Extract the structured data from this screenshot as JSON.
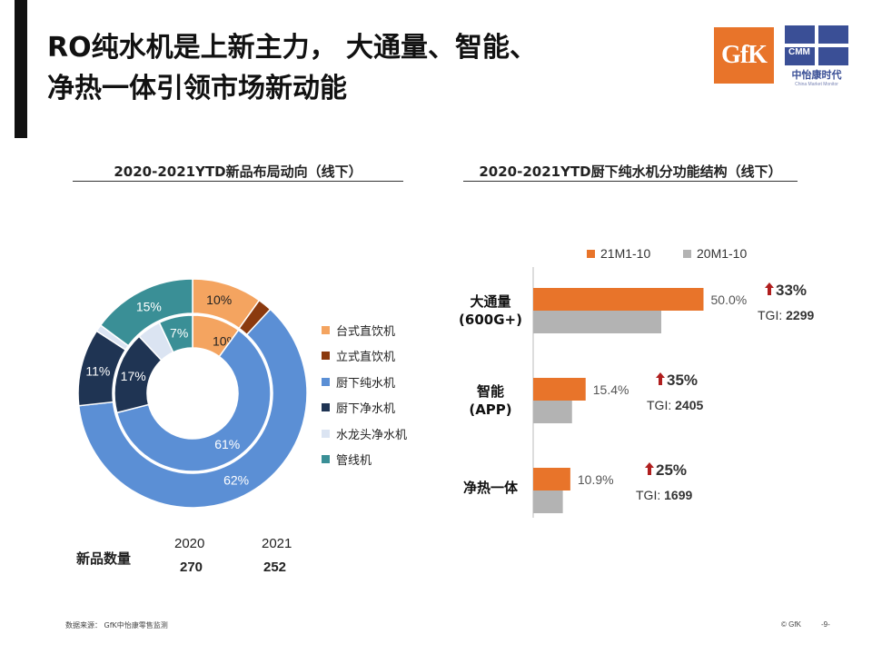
{
  "title_lines": [
    "RO纯水机是上新主力， 大通量、智能、",
    "净热一体引领市场新动能"
  ],
  "logos": {
    "gfk": "GfK",
    "cmm_abbr": "CMM",
    "cmm_cn": "中怡康时代",
    "cmm_en": "China Market Monitor"
  },
  "colors": {
    "accent": "#e8742a",
    "gray": "#b3b3b3",
    "blue": "#5b8fd5",
    "navy": "#1f3453",
    "teal": "#3a8f96",
    "brown": "#8b3a0f",
    "lightblue": "#dbe4f2",
    "red": "#b01e1e"
  },
  "left_chart": {
    "section_title": "2020-2021YTD新品布局动向（线下）",
    "count_label": "新品数量",
    "years": [
      "2020",
      "2021"
    ],
    "counts": [
      "270",
      "252"
    ]
  },
  "right_chart": {
    "section_title": "2020-2021YTD厨下纯水机分功能结构（线下）"
  },
  "chart_data": [
    {
      "type": "pie",
      "subtype": "donut-nested",
      "title": "2020-2021YTD新品布局动向（线下）",
      "categories": [
        "台式直饮机",
        "立式直饮机",
        "厨下纯水机",
        "厨下净水机",
        "水龙头净水机",
        "管线机"
      ],
      "colors": [
        "#f4a460",
        "#8b3a0f",
        "#5b8fd5",
        "#1f3453",
        "#dbe4f2",
        "#3a8f96"
      ],
      "series": [
        {
          "name": "2020",
          "ring": "inner",
          "values": [
            10,
            0,
            61,
            17,
            5,
            7
          ],
          "labels": [
            "10%",
            "",
            "61%",
            "17%",
            "",
            "7%"
          ]
        },
        {
          "name": "2021",
          "ring": "outer",
          "values": [
            10,
            2,
            62,
            11,
            1,
            15
          ],
          "labels": [
            "10%",
            "",
            "62%",
            "11%",
            "",
            "15%"
          ]
        }
      ],
      "legend_placement": "right"
    },
    {
      "type": "bar",
      "orientation": "horizontal",
      "title": "2020-2021YTD厨下纯水机分功能结构（线下）",
      "categories": [
        "大通量\n(600G+)",
        "智能\n(APP)",
        "净热一体"
      ],
      "series": [
        {
          "name": "21M1-10",
          "color": "#e8742a",
          "values": [
            50.0,
            15.4,
            10.9
          ],
          "labels": [
            "50.0%",
            "15.4%",
            "10.9%"
          ]
        },
        {
          "name": "20M1-10",
          "color": "#b3b3b3",
          "values": [
            37.6,
            11.4,
            8.7
          ]
        }
      ],
      "growth": [
        "33%",
        "35%",
        "25%"
      ],
      "tgi_label": "TGI:",
      "tgi": [
        "2299",
        "2405",
        "1699"
      ],
      "xlim": [
        0,
        80
      ],
      "legend_placement": "top"
    }
  ],
  "footer": {
    "source": "数据来源：  GfK中怡康零售监测",
    "copyright": "© GfK",
    "page": "-9-"
  }
}
